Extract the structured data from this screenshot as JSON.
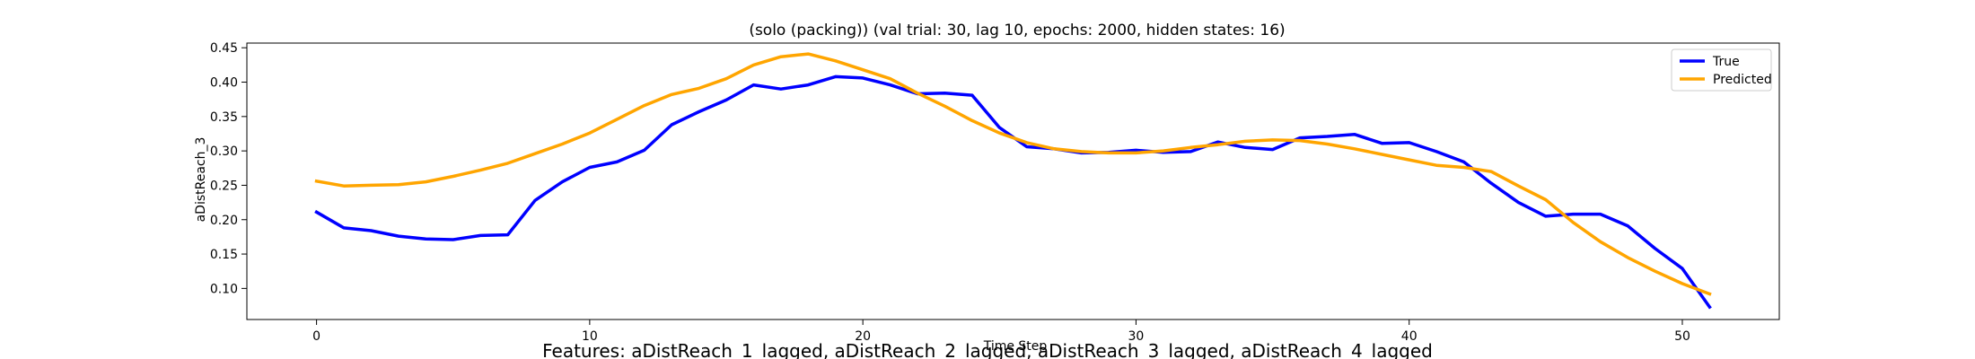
{
  "chart_data": {
    "type": "line",
    "title": "(solo (packing)) (val trial: 30, lag 10, epochs: 2000, hidden states: 16)",
    "xlabel": "Time Step",
    "ylabel": "aDistReach_3",
    "caption": "Features: aDistReach_1_lagged, aDistReach_2_lagged, aDistReach_3_lagged, aDistReach_4_lagged",
    "xlim": [
      -2.55,
      53.55
    ],
    "ylim": [
      0.0548,
      0.4568
    ],
    "xticks": [
      0,
      10,
      20,
      30,
      40,
      50
    ],
    "yticks": [
      0.1,
      0.15,
      0.2,
      0.25,
      0.3,
      0.35,
      0.4,
      0.45
    ],
    "grid": false,
    "legend_position": "top-right",
    "x": [
      0,
      1,
      2,
      3,
      4,
      5,
      6,
      7,
      8,
      9,
      10,
      11,
      12,
      13,
      14,
      15,
      16,
      17,
      18,
      19,
      20,
      21,
      22,
      23,
      24,
      25,
      26,
      27,
      28,
      29,
      30,
      31,
      32,
      33,
      34,
      35,
      36,
      37,
      38,
      39,
      40,
      41,
      42,
      43,
      44,
      45,
      46,
      47,
      48,
      49,
      50,
      51
    ],
    "series": [
      {
        "name": "True",
        "color": "#0000ff",
        "values": [
          0.211,
          0.188,
          0.184,
          0.176,
          0.172,
          0.171,
          0.177,
          0.178,
          0.228,
          0.255,
          0.276,
          0.284,
          0.301,
          0.338,
          0.357,
          0.374,
          0.396,
          0.39,
          0.396,
          0.408,
          0.406,
          0.396,
          0.383,
          0.384,
          0.381,
          0.334,
          0.306,
          0.303,
          0.297,
          0.298,
          0.301,
          0.298,
          0.299,
          0.313,
          0.305,
          0.302,
          0.319,
          0.321,
          0.324,
          0.311,
          0.312,
          0.299,
          0.284,
          0.253,
          0.225,
          0.205,
          0.208,
          0.208,
          0.191,
          0.158,
          0.129,
          0.073
        ]
      },
      {
        "name": "Predicted",
        "color": "#ffa500",
        "values": [
          0.256,
          0.249,
          0.25,
          0.251,
          0.255,
          0.263,
          0.272,
          0.282,
          0.296,
          0.31,
          0.326,
          0.346,
          0.366,
          0.382,
          0.391,
          0.405,
          0.425,
          0.437,
          0.441,
          0.431,
          0.418,
          0.405,
          0.384,
          0.365,
          0.344,
          0.326,
          0.312,
          0.303,
          0.299,
          0.297,
          0.297,
          0.3,
          0.305,
          0.309,
          0.314,
          0.316,
          0.315,
          0.31,
          0.303,
          0.295,
          0.287,
          0.279,
          0.276,
          0.27,
          0.249,
          0.229,
          0.196,
          0.168,
          0.145,
          0.125,
          0.107,
          0.092
        ]
      }
    ]
  }
}
